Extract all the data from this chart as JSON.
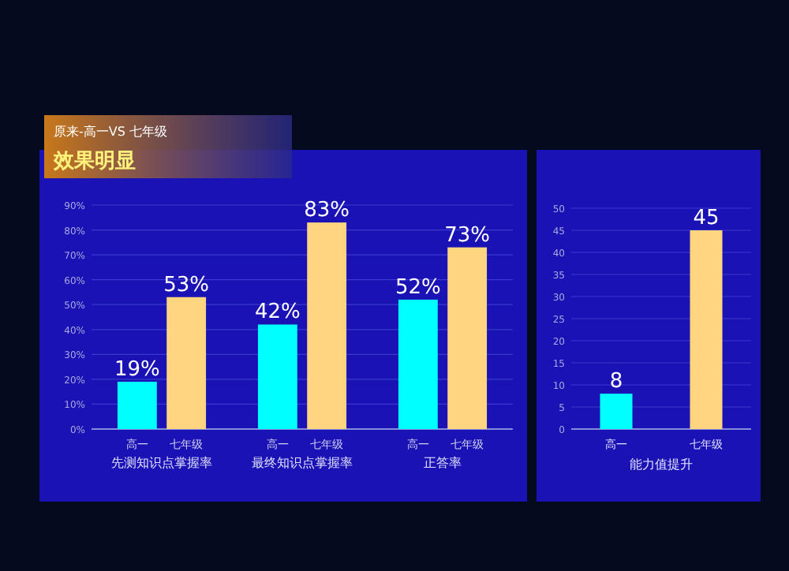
{
  "chart_data": [
    {
      "type": "bar",
      "subtitle": "原来-高一VS 七年级",
      "title": "效果明显",
      "categories": [
        "先测知识点掌握率",
        "最终知识点掌握率",
        "正答率"
      ],
      "series": [
        {
          "name": "高一",
          "color": "#00ffff",
          "values": [
            19,
            42,
            52
          ],
          "value_labels": [
            "19%",
            "42%",
            "52%"
          ]
        },
        {
          "name": "七年级",
          "color": "#ffd580",
          "values": [
            53,
            83,
            73
          ],
          "value_labels": [
            "53%",
            "83%",
            "73%"
          ]
        }
      ],
      "ylim": [
        0,
        90
      ],
      "yticks": [
        {
          "value": 0,
          "label": "0%"
        },
        {
          "value": 10,
          "label": "10%"
        },
        {
          "value": 20,
          "label": "20%"
        },
        {
          "value": 30,
          "label": "30%"
        },
        {
          "value": 40,
          "label": "40%"
        },
        {
          "value": 50,
          "label": "50%"
        },
        {
          "value": 60,
          "label": "60%"
        },
        {
          "value": 70,
          "label": "70%"
        },
        {
          "value": 80,
          "label": "80%"
        },
        {
          "value": 90,
          "label": "90%"
        }
      ],
      "grid": "y"
    },
    {
      "type": "bar",
      "xlabel": "能力值提升",
      "categories": [
        "高一",
        "七年级"
      ],
      "values": [
        8,
        45
      ],
      "colors": [
        "#00ffff",
        "#ffd580"
      ],
      "ylim": [
        0,
        50
      ],
      "yticks": [
        0,
        5,
        10,
        15,
        20,
        25,
        30,
        35,
        40,
        45,
        50
      ],
      "data_labels": true,
      "grid": "y"
    }
  ]
}
